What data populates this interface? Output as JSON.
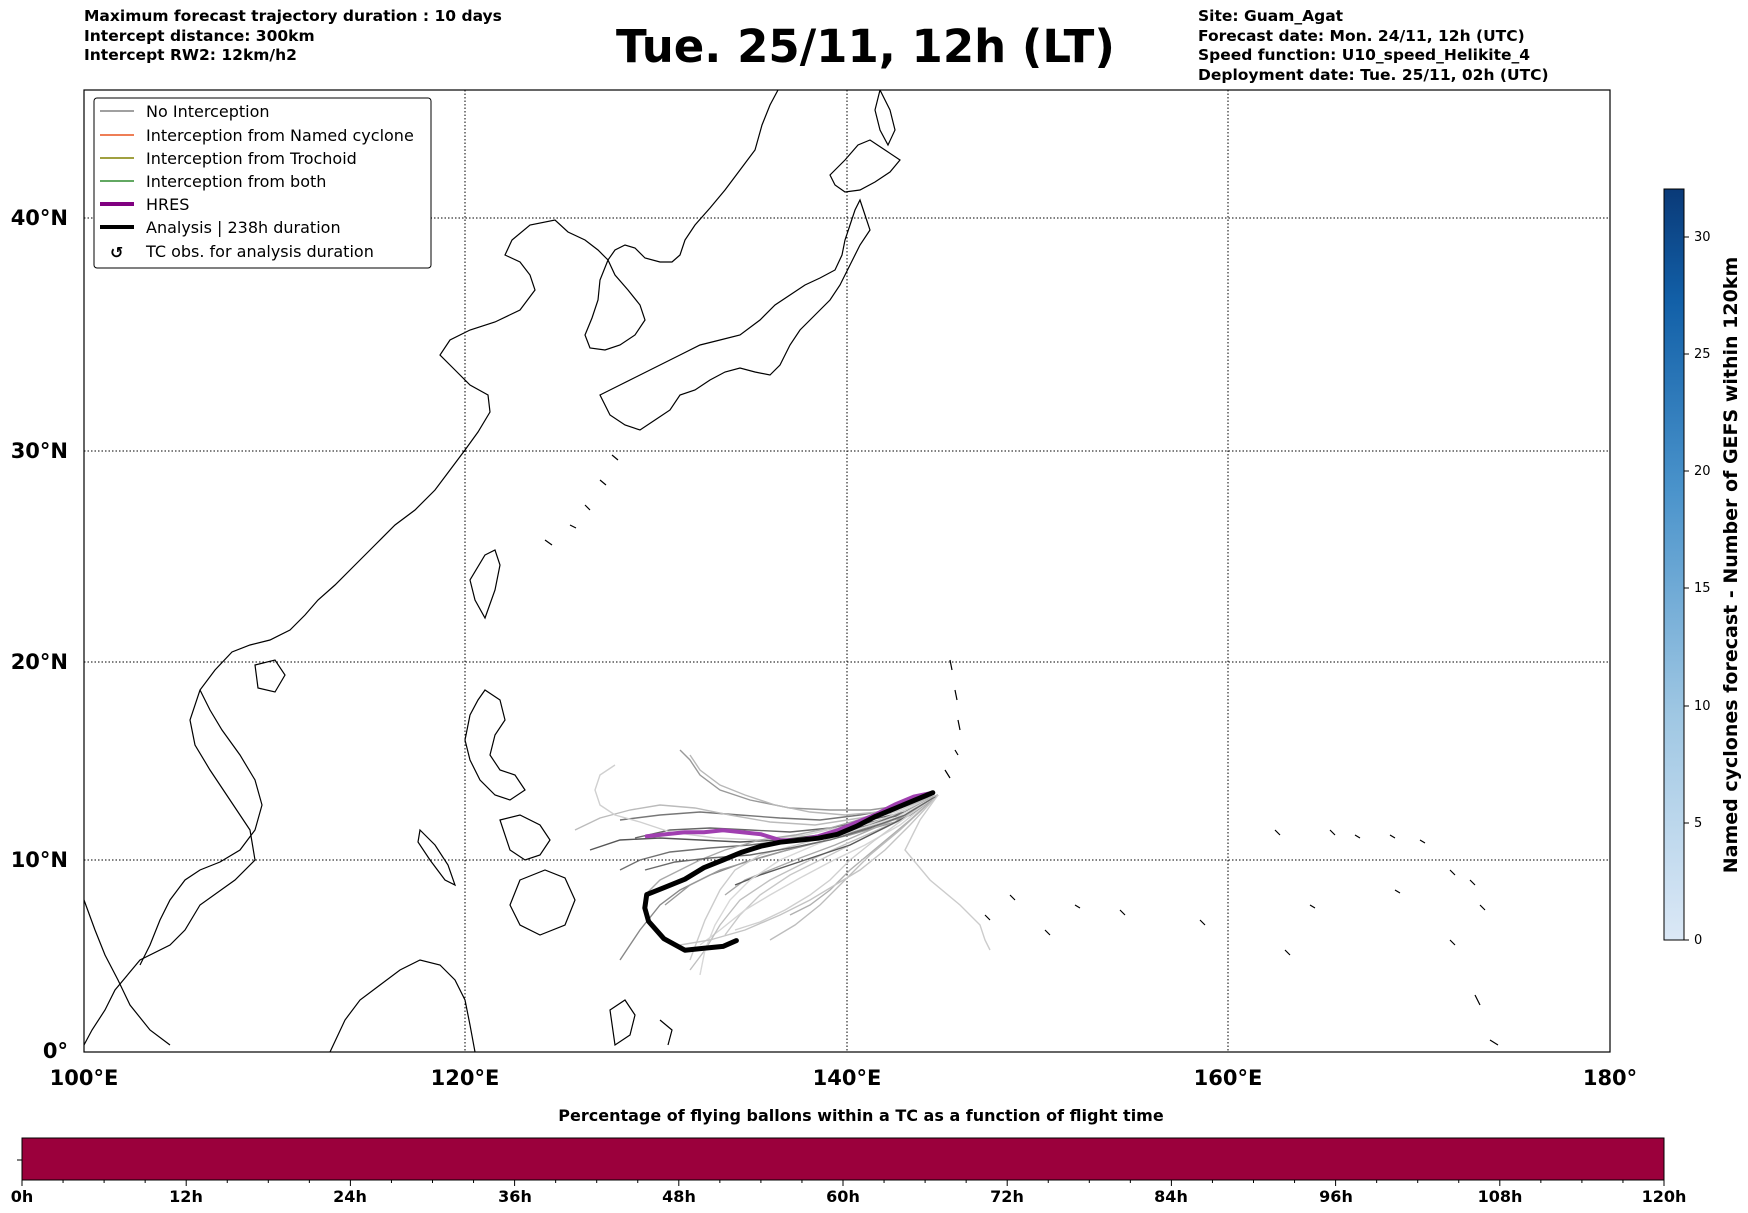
{
  "header": {
    "left_lines": [
      "Maximum forecast trajectory duration : 10 days",
      "Intercept distance: 300km",
      "Intercept RW2: 12km/h2"
    ],
    "title": "Tue. 25/11, 12h (LT)",
    "right_lines": [
      "Site: Guam_Agat",
      "Forecast date: Mon. 24/11, 12h (UTC)",
      "Speed function: U10_speed_Helikite_4",
      "Deployment date: Tue. 25/11, 02h (UTC)"
    ]
  },
  "map": {
    "lon_range": [
      100,
      180
    ],
    "lat_range": [
      0,
      45
    ],
    "lat_labels": [
      "40°N",
      "30°N",
      "20°N",
      "10°N",
      "0°"
    ],
    "lon_labels": [
      "100°E",
      "120°E",
      "140°E",
      "160°E",
      "180°"
    ],
    "gridlines": "dotted",
    "legend": {
      "placement": "top-left",
      "items": [
        {
          "label": "No Interception",
          "color": "#808080"
        },
        {
          "label": "Interception from Named cyclone",
          "color": "#e8531f"
        },
        {
          "label": "Interception from Trochoid",
          "color": "#808000"
        },
        {
          "label": "Interception from both",
          "color": "#2e8b2e"
        },
        {
          "label": "HRES",
          "color": "#800080"
        },
        {
          "label": "Analysis | 238h duration",
          "color": "#000000"
        },
        {
          "label": "TC obs. for analysis duration",
          "color": "#000000"
        }
      ]
    },
    "hres_track": [
      [
        129.5,
        11.2
      ],
      [
        130.5,
        11.3
      ],
      [
        131.5,
        11.4
      ],
      [
        132.5,
        11.4
      ],
      [
        133.5,
        11.5
      ],
      [
        134.5,
        11.4
      ],
      [
        135.5,
        11.3
      ],
      [
        136.5,
        11.0
      ],
      [
        137.5,
        11.0
      ],
      [
        138.5,
        11.2
      ],
      [
        139.5,
        11.5
      ],
      [
        140.5,
        11.9
      ],
      [
        141.5,
        12.3
      ],
      [
        142.5,
        12.8
      ],
      [
        143.5,
        13.2
      ],
      [
        144.5,
        13.4
      ]
    ],
    "analysis_track": [
      [
        134.2,
        5.8
      ],
      [
        133.5,
        5.5
      ],
      [
        132.5,
        5.4
      ],
      [
        131.5,
        5.3
      ],
      [
        130.4,
        5.9
      ],
      [
        129.6,
        6.8
      ],
      [
        129.4,
        7.5
      ],
      [
        129.5,
        8.2
      ],
      [
        130.5,
        8.6
      ],
      [
        131.5,
        9.0
      ],
      [
        132.5,
        9.6
      ],
      [
        133.5,
        10.0
      ],
      [
        134.5,
        10.4
      ],
      [
        135.5,
        10.7
      ],
      [
        136.5,
        10.9
      ],
      [
        137.5,
        11.0
      ],
      [
        138.5,
        11.1
      ],
      [
        139.5,
        11.3
      ],
      [
        140.5,
        11.7
      ],
      [
        141.5,
        12.2
      ],
      [
        142.5,
        12.6
      ],
      [
        143.5,
        13.0
      ],
      [
        144.5,
        13.4
      ]
    ]
  },
  "colorbar": {
    "title": "Named cyclones forecast - Number of GEFS within 120km",
    "ticks": [
      "0",
      "5",
      "10",
      "15",
      "20",
      "25",
      "30"
    ],
    "min": 0,
    "max": 32
  },
  "flight_bar": {
    "title": "Percentage of flying ballons within a TC as a function of flight time",
    "ticks": [
      "0h",
      "12h",
      "24h",
      "36h",
      "48h",
      "60h",
      "72h",
      "84h",
      "96h",
      "108h",
      "120h"
    ],
    "fill_color": "#9b003c"
  }
}
